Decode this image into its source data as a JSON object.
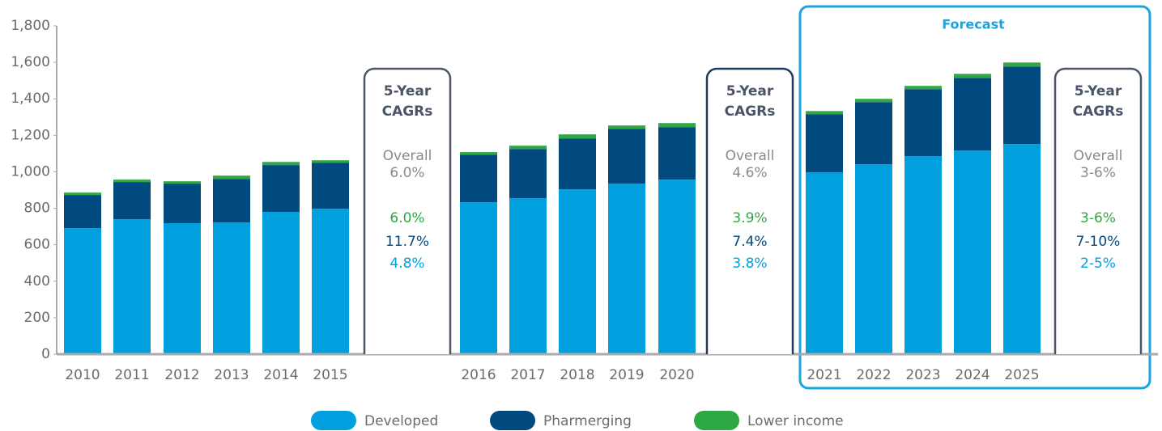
{
  "chart_data": {
    "type": "stacked_bar",
    "categories": [
      "2010",
      "2011",
      "2012",
      "2013",
      "2014",
      "2015",
      "2016",
      "2017",
      "2018",
      "2019",
      "2020",
      "2021",
      "2022",
      "2023",
      "2024",
      "2025"
    ],
    "series": [
      {
        "name": "Developed",
        "color": "#00a0df",
        "values": [
          691,
          740,
          718,
          722,
          780,
          797,
          833,
          855,
          904,
          935,
          957,
          997,
          1041,
          1085,
          1116,
          1152
        ]
      },
      {
        "name": "Pharmerging",
        "color": "#004a80",
        "values": [
          182,
          204,
          217,
          239,
          257,
          253,
          261,
          270,
          279,
          301,
          288,
          319,
          341,
          368,
          399,
          425
        ]
      },
      {
        "name": "Lower income",
        "color": "#2ea843",
        "values": [
          13,
          13,
          13,
          18,
          17,
          13,
          14,
          18,
          22,
          18,
          22,
          17,
          18,
          18,
          22,
          22
        ]
      }
    ],
    "ylim": [
      0,
      1800
    ],
    "yticks": [
      0,
      200,
      400,
      600,
      800,
      {
        "value": 1000,
        "label": "1,000"
      },
      {
        "value": 1200,
        "label": "1,200"
      },
      {
        "value": 1400,
        "label": "1,400"
      },
      {
        "value": 1600,
        "label": "1,600"
      },
      {
        "value": 1800,
        "label": "1,800"
      }
    ],
    "grid": false,
    "forecast_label": "Forecast",
    "cagr_boxes": [
      {
        "title": [
          "5-Year",
          "CAGRs"
        ],
        "overall_label": "Overall",
        "overall": "6.0%",
        "developed": "4.8%",
        "pharmerging": "11.7%",
        "lower_income": "6.0%"
      },
      {
        "title": [
          "5-Year",
          "CAGRs"
        ],
        "overall_label": "Overall",
        "overall": "4.6%",
        "developed": "3.8%",
        "pharmerging": "7.4%",
        "lower_income": "3.9%"
      },
      {
        "title": [
          "5-Year",
          "CAGRs"
        ],
        "overall_label": "Overall",
        "overall": "3-6%",
        "developed": "2-5%",
        "pharmerging": "7-10%",
        "lower_income": "3-6%"
      }
    ]
  }
}
